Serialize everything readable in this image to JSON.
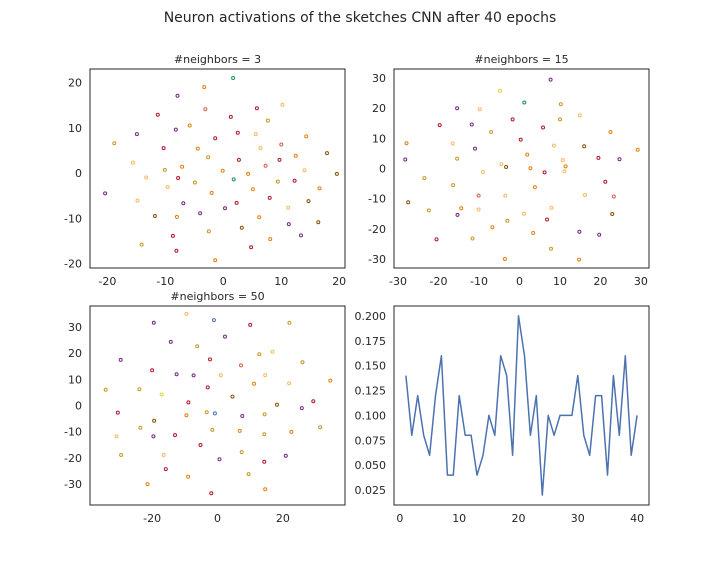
{
  "figure": {
    "title": "Neuron activations of the sketches CNN after 40 epochs"
  },
  "palette": [
    "#c49a2a",
    "#b2182b",
    "#e08214",
    "#fdb863",
    "#d6604d",
    "#762a83",
    "#e7d33d",
    "#1a9850",
    "#4575b4",
    "#8c510a"
  ],
  "chart_data": [
    {
      "type": "scatter",
      "title": "#neighbors = 3",
      "xlim": [
        -23,
        21
      ],
      "ylim": [
        -21,
        23
      ],
      "xticks": [
        -20,
        -10,
        0,
        10,
        20
      ],
      "yticks": [
        -20,
        -10,
        0,
        10,
        20
      ],
      "grid": false,
      "points": [
        {
          "x": 1.7,
          "y": 21.0,
          "c": 7
        },
        {
          "x": -3.3,
          "y": 19.0,
          "c": 2
        },
        {
          "x": -7.9,
          "y": 17.1,
          "c": 5
        },
        {
          "x": 10.2,
          "y": 15.1,
          "c": 3
        },
        {
          "x": 5.8,
          "y": 14.3,
          "c": 1
        },
        {
          "x": -3.1,
          "y": 14.1,
          "c": 4
        },
        {
          "x": -11.3,
          "y": 12.9,
          "c": 1
        },
        {
          "x": 1.3,
          "y": 12.4,
          "c": 1
        },
        {
          "x": 7.7,
          "y": 11.6,
          "c": 0
        },
        {
          "x": -5.8,
          "y": 10.5,
          "c": 2
        },
        {
          "x": -8.2,
          "y": 9.6,
          "c": 5
        },
        {
          "x": 2.5,
          "y": 8.9,
          "c": 1
        },
        {
          "x": -14.9,
          "y": 8.6,
          "c": 5
        },
        {
          "x": 5.6,
          "y": 8.6,
          "c": 3
        },
        {
          "x": 14.3,
          "y": 8.1,
          "c": 2
        },
        {
          "x": -1.4,
          "y": 7.7,
          "c": 1
        },
        {
          "x": -18.8,
          "y": 6.6,
          "c": 0
        },
        {
          "x": 10.0,
          "y": 6.3,
          "c": 4
        },
        {
          "x": -10.3,
          "y": 5.5,
          "c": 1
        },
        {
          "x": 6.4,
          "y": 5.5,
          "c": 3
        },
        {
          "x": -4.4,
          "y": 5.4,
          "c": 2
        },
        {
          "x": 17.9,
          "y": 4.4,
          "c": 9
        },
        {
          "x": 12.5,
          "y": 3.8,
          "c": 2
        },
        {
          "x": -2.6,
          "y": 3.5,
          "c": 0
        },
        {
          "x": 2.7,
          "y": 2.9,
          "c": 1
        },
        {
          "x": 9.7,
          "y": 2.9,
          "c": 1
        },
        {
          "x": -15.6,
          "y": 2.3,
          "c": 3
        },
        {
          "x": 7.3,
          "y": 1.6,
          "c": 4
        },
        {
          "x": -7.1,
          "y": 1.4,
          "c": 2
        },
        {
          "x": -10.1,
          "y": 0.7,
          "c": 0
        },
        {
          "x": 14.0,
          "y": 0.6,
          "c": 3
        },
        {
          "x": -0.1,
          "y": 0.5,
          "c": 2
        },
        {
          "x": 4.3,
          "y": -0.2,
          "c": 2
        },
        {
          "x": 19.6,
          "y": -0.2,
          "c": 9
        },
        {
          "x": -13.3,
          "y": -1.0,
          "c": 3
        },
        {
          "x": -7.8,
          "y": -1.1,
          "c": 1
        },
        {
          "x": 1.8,
          "y": -1.4,
          "c": 7
        },
        {
          "x": 12.3,
          "y": -1.7,
          "c": 1
        },
        {
          "x": 9.4,
          "y": -1.9,
          "c": 0
        },
        {
          "x": -4.9,
          "y": -2.1,
          "c": 0
        },
        {
          "x": -9.6,
          "y": -3.1,
          "c": 3
        },
        {
          "x": 16.6,
          "y": -3.4,
          "c": 2
        },
        {
          "x": 5.1,
          "y": -3.6,
          "c": 2
        },
        {
          "x": -2.0,
          "y": -4.4,
          "c": 2
        },
        {
          "x": -20.4,
          "y": -4.5,
          "c": 5
        },
        {
          "x": 8.0,
          "y": -5.5,
          "c": 1
        },
        {
          "x": -14.8,
          "y": -6.1,
          "c": 3
        },
        {
          "x": 14.7,
          "y": -6.2,
          "c": 9
        },
        {
          "x": 2.3,
          "y": -6.6,
          "c": 1
        },
        {
          "x": -6.9,
          "y": -6.7,
          "c": 5
        },
        {
          "x": 11.2,
          "y": -7.7,
          "c": 3
        },
        {
          "x": 0.3,
          "y": -7.8,
          "c": 5
        },
        {
          "x": -4.0,
          "y": -8.9,
          "c": 5
        },
        {
          "x": -11.8,
          "y": -9.5,
          "c": 9
        },
        {
          "x": -8.0,
          "y": -9.7,
          "c": 2
        },
        {
          "x": 6.2,
          "y": -9.8,
          "c": 2
        },
        {
          "x": 16.4,
          "y": -10.9,
          "c": 9
        },
        {
          "x": 11.3,
          "y": -11.3,
          "c": 5
        },
        {
          "x": 3.2,
          "y": -12.1,
          "c": 9
        },
        {
          "x": -2.5,
          "y": -12.9,
          "c": 0
        },
        {
          "x": 13.4,
          "y": -13.8,
          "c": 5
        },
        {
          "x": -8.7,
          "y": -13.9,
          "c": 1
        },
        {
          "x": 8.1,
          "y": -14.6,
          "c": 2
        },
        {
          "x": -14.1,
          "y": -15.8,
          "c": 0
        },
        {
          "x": 4.8,
          "y": -16.4,
          "c": 1
        },
        {
          "x": -8.1,
          "y": -17.2,
          "c": 1
        },
        {
          "x": -1.4,
          "y": -19.3,
          "c": 2
        }
      ]
    },
    {
      "type": "scatter",
      "title": "#neighbors = 15",
      "xlim": [
        -31,
        32
      ],
      "ylim": [
        -33,
        33
      ],
      "xticks": [
        -30,
        -20,
        -10,
        0,
        10,
        20,
        30
      ],
      "yticks": [
        -30,
        -20,
        -10,
        0,
        10,
        20,
        30
      ],
      "grid": false,
      "points": [
        {
          "x": 7.7,
          "y": 29.5,
          "c": 5
        },
        {
          "x": -4.8,
          "y": 25.8,
          "c": 6
        },
        {
          "x": -15.4,
          "y": 20.0,
          "c": 5
        },
        {
          "x": 10.2,
          "y": 21.3,
          "c": 0
        },
        {
          "x": 1.2,
          "y": 21.9,
          "c": 7
        },
        {
          "x": -9.8,
          "y": 19.6,
          "c": 3
        },
        {
          "x": -1.7,
          "y": 16.3,
          "c": 1
        },
        {
          "x": 14.9,
          "y": 17.6,
          "c": 3
        },
        {
          "x": 10.0,
          "y": 16.3,
          "c": 0
        },
        {
          "x": -19.7,
          "y": 14.4,
          "c": 1
        },
        {
          "x": -11.8,
          "y": 14.6,
          "c": 5
        },
        {
          "x": 5.8,
          "y": 13.6,
          "c": 1
        },
        {
          "x": -7.0,
          "y": 12.1,
          "c": 0
        },
        {
          "x": 22.5,
          "y": 12.1,
          "c": 2
        },
        {
          "x": 0.3,
          "y": 9.6,
          "c": 1
        },
        {
          "x": 16.0,
          "y": 7.4,
          "c": 9
        },
        {
          "x": -27.9,
          "y": 8.4,
          "c": 2
        },
        {
          "x": -16.5,
          "y": 8.3,
          "c": 3
        },
        {
          "x": 8.5,
          "y": 7.6,
          "c": 3
        },
        {
          "x": -11.0,
          "y": 6.6,
          "c": 5
        },
        {
          "x": 1.9,
          "y": 4.6,
          "c": 2
        },
        {
          "x": 29.2,
          "y": 6.2,
          "c": 2
        },
        {
          "x": -15.4,
          "y": 3.3,
          "c": 0
        },
        {
          "x": 19.5,
          "y": 3.5,
          "c": 1
        },
        {
          "x": 24.7,
          "y": 3.1,
          "c": 5
        },
        {
          "x": -28.2,
          "y": 3.0,
          "c": 5
        },
        {
          "x": 10.7,
          "y": 2.8,
          "c": 3
        },
        {
          "x": -4.5,
          "y": 1.4,
          "c": 3
        },
        {
          "x": 11.4,
          "y": 0.7,
          "c": 2
        },
        {
          "x": -3.3,
          "y": 0.5,
          "c": 9
        },
        {
          "x": 11.1,
          "y": -0.9,
          "c": 3
        },
        {
          "x": 2.7,
          "y": 0.1,
          "c": 2
        },
        {
          "x": -9.0,
          "y": -1.2,
          "c": 3
        },
        {
          "x": 6.2,
          "y": -1.3,
          "c": 1
        },
        {
          "x": 21.2,
          "y": -4.4,
          "c": 1
        },
        {
          "x": -23.5,
          "y": -3.2,
          "c": 0
        },
        {
          "x": -16.4,
          "y": -5.5,
          "c": 0
        },
        {
          "x": -10.1,
          "y": -9.0,
          "c": 4
        },
        {
          "x": 3.8,
          "y": -6.2,
          "c": 2
        },
        {
          "x": 16.2,
          "y": -8.8,
          "c": 3
        },
        {
          "x": -27.5,
          "y": -11.2,
          "c": 9
        },
        {
          "x": 23.3,
          "y": -9.3,
          "c": 4
        },
        {
          "x": -3.5,
          "y": -9.0,
          "c": 3
        },
        {
          "x": -14.4,
          "y": -13.2,
          "c": 2
        },
        {
          "x": 7.9,
          "y": -13.0,
          "c": 3
        },
        {
          "x": -22.4,
          "y": -13.9,
          "c": 0
        },
        {
          "x": -10.1,
          "y": -13.6,
          "c": 3
        },
        {
          "x": 22.9,
          "y": -15.1,
          "c": 9
        },
        {
          "x": 1.1,
          "y": -15.0,
          "c": 3
        },
        {
          "x": -15.3,
          "y": -15.4,
          "c": 5
        },
        {
          "x": 6.8,
          "y": -16.9,
          "c": 1
        },
        {
          "x": -3.0,
          "y": -17.3,
          "c": 0
        },
        {
          "x": -6.7,
          "y": -19.5,
          "c": 2
        },
        {
          "x": 3.4,
          "y": -21.4,
          "c": 2
        },
        {
          "x": 14.8,
          "y": -21.0,
          "c": 5
        },
        {
          "x": 19.7,
          "y": -22.0,
          "c": 5
        },
        {
          "x": -11.6,
          "y": -23.2,
          "c": 0
        },
        {
          "x": -20.5,
          "y": -23.5,
          "c": 1
        },
        {
          "x": 7.8,
          "y": -26.6,
          "c": 0
        },
        {
          "x": -3.6,
          "y": -30.0,
          "c": 2
        },
        {
          "x": 14.7,
          "y": -30.2,
          "c": 2
        }
      ]
    },
    {
      "type": "scatter",
      "title": "#neighbors = 50",
      "xlim": [
        -39,
        39
      ],
      "ylim": [
        -38,
        38
      ],
      "xticks": [
        -20,
        0,
        20
      ],
      "yticks": [
        -30,
        -20,
        -10,
        0,
        10,
        20,
        30
      ],
      "grid": false,
      "points": [
        {
          "x": -9.5,
          "y": 35.0,
          "c": 3
        },
        {
          "x": -1.1,
          "y": 32.6,
          "c": 8
        },
        {
          "x": -19.5,
          "y": 31.6,
          "c": 5
        },
        {
          "x": 10.0,
          "y": 30.8,
          "c": 1
        },
        {
          "x": 22.0,
          "y": 31.6,
          "c": 0
        },
        {
          "x": 2.3,
          "y": 26.3,
          "c": 5
        },
        {
          "x": -14.3,
          "y": 24.3,
          "c": 5
        },
        {
          "x": -6.2,
          "y": 22.6,
          "c": 0
        },
        {
          "x": 16.8,
          "y": 20.5,
          "c": 3
        },
        {
          "x": 12.8,
          "y": 19.6,
          "c": 0
        },
        {
          "x": -29.6,
          "y": 17.4,
          "c": 5
        },
        {
          "x": -2.3,
          "y": 17.6,
          "c": 1
        },
        {
          "x": 26.0,
          "y": 16.5,
          "c": 0
        },
        {
          "x": 7.2,
          "y": 15.3,
          "c": 4
        },
        {
          "x": -20.0,
          "y": 13.5,
          "c": 1
        },
        {
          "x": 14.6,
          "y": 11.6,
          "c": 3
        },
        {
          "x": -12.5,
          "y": 11.9,
          "c": 5
        },
        {
          "x": 1.0,
          "y": 11.6,
          "c": 3
        },
        {
          "x": -7.3,
          "y": 11.5,
          "c": 5
        },
        {
          "x": 34.5,
          "y": 9.5,
          "c": 2
        },
        {
          "x": 21.9,
          "y": 8.5,
          "c": 3
        },
        {
          "x": 11.2,
          "y": 8.3,
          "c": 2
        },
        {
          "x": -3.0,
          "y": 6.9,
          "c": 1
        },
        {
          "x": -23.9,
          "y": 6.2,
          "c": 0
        },
        {
          "x": -34.2,
          "y": 6.0,
          "c": 0
        },
        {
          "x": -17.1,
          "y": 4.2,
          "c": 6
        },
        {
          "x": 4.6,
          "y": 3.4,
          "c": 9
        },
        {
          "x": 29.3,
          "y": 1.6,
          "c": 1
        },
        {
          "x": -8.9,
          "y": 1.2,
          "c": 1
        },
        {
          "x": 18.2,
          "y": 0.3,
          "c": 9
        },
        {
          "x": 25.8,
          "y": -1.0,
          "c": 5
        },
        {
          "x": -30.5,
          "y": -2.7,
          "c": 1
        },
        {
          "x": -3.3,
          "y": -2.6,
          "c": 0
        },
        {
          "x": -9.5,
          "y": -3.7,
          "c": 2
        },
        {
          "x": -0.8,
          "y": -3.0,
          "c": 8
        },
        {
          "x": 14.4,
          "y": -3.4,
          "c": 0
        },
        {
          "x": 7.6,
          "y": -4.0,
          "c": 5
        },
        {
          "x": -19.4,
          "y": -5.8,
          "c": 9
        },
        {
          "x": -23.6,
          "y": -8.5,
          "c": 0
        },
        {
          "x": 31.4,
          "y": -8.3,
          "c": 0
        },
        {
          "x": 6.8,
          "y": -9.7,
          "c": 2
        },
        {
          "x": -1.6,
          "y": -9.3,
          "c": 0
        },
        {
          "x": 22.6,
          "y": -10.1,
          "c": 2
        },
        {
          "x": -30.9,
          "y": -11.8,
          "c": 3
        },
        {
          "x": -13.0,
          "y": -11.3,
          "c": 1
        },
        {
          "x": -19.6,
          "y": -11.8,
          "c": 5
        },
        {
          "x": 14.3,
          "y": -11.0,
          "c": 0
        },
        {
          "x": -5.2,
          "y": -15.1,
          "c": 1
        },
        {
          "x": 7.4,
          "y": -17.8,
          "c": 0
        },
        {
          "x": -29.5,
          "y": -18.9,
          "c": 0
        },
        {
          "x": -16.5,
          "y": -18.9,
          "c": 3
        },
        {
          "x": 20.9,
          "y": -19.2,
          "c": 5
        },
        {
          "x": 0.6,
          "y": -20.5,
          "c": 5
        },
        {
          "x": 14.3,
          "y": -21.5,
          "c": 1
        },
        {
          "x": -15.8,
          "y": -24.3,
          "c": 1
        },
        {
          "x": -9.0,
          "y": -27.2,
          "c": 2
        },
        {
          "x": 9.5,
          "y": -26.2,
          "c": 0
        },
        {
          "x": -21.4,
          "y": -30.0,
          "c": 2
        },
        {
          "x": 14.6,
          "y": -32.0,
          "c": 2
        },
        {
          "x": -1.9,
          "y": -33.5,
          "c": 1
        }
      ]
    },
    {
      "type": "line",
      "title": "",
      "xlim": [
        -1,
        42
      ],
      "ylim": [
        0.01,
        0.21
      ],
      "xticks": [
        0,
        10,
        20,
        30,
        40
      ],
      "yticks": [
        0.025,
        0.05,
        0.075,
        0.1,
        0.125,
        0.15,
        0.175,
        0.2
      ],
      "ytick_labels": [
        "0.025",
        "0.050",
        "0.075",
        "0.100",
        "0.125",
        "0.150",
        "0.175",
        "0.200"
      ],
      "grid": false,
      "color": "#4c72b0",
      "x": [
        1,
        2,
        3,
        4,
        5,
        6,
        7,
        8,
        9,
        10,
        11,
        12,
        13,
        14,
        15,
        16,
        17,
        18,
        19,
        20,
        21,
        22,
        23,
        24,
        25,
        26,
        27,
        28,
        29,
        30,
        31,
        32,
        33,
        34,
        35,
        36,
        37,
        38,
        39,
        40
      ],
      "y": [
        0.14,
        0.08,
        0.12,
        0.08,
        0.06,
        0.12,
        0.16,
        0.04,
        0.04,
        0.12,
        0.08,
        0.08,
        0.04,
        0.06,
        0.1,
        0.08,
        0.16,
        0.14,
        0.06,
        0.2,
        0.16,
        0.08,
        0.12,
        0.02,
        0.1,
        0.08,
        0.1,
        0.1,
        0.1,
        0.14,
        0.08,
        0.06,
        0.12,
        0.12,
        0.04,
        0.14,
        0.08,
        0.16,
        0.06,
        0.1
      ]
    }
  ]
}
